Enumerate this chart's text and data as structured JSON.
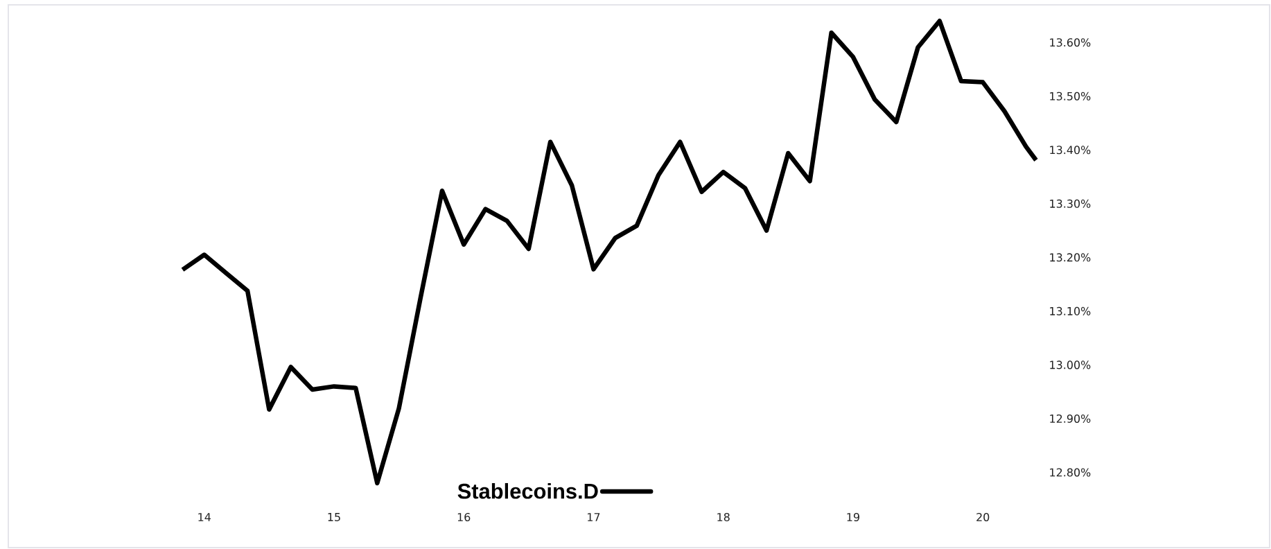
{
  "chart_data": {
    "type": "line",
    "x": [
      13.833,
      14.0,
      14.167,
      14.333,
      14.5,
      14.667,
      14.833,
      15.0,
      15.167,
      15.333,
      15.5,
      15.667,
      15.833,
      16.0,
      16.167,
      16.333,
      16.5,
      16.667,
      16.833,
      17.0,
      17.167,
      17.333,
      17.5,
      17.667,
      17.833,
      18.0,
      18.167,
      18.333,
      18.5,
      18.667,
      18.833,
      19.0,
      19.167,
      19.333,
      19.5,
      19.667,
      19.833,
      20.0,
      20.167,
      20.333,
      20.41
    ],
    "series": [
      {
        "name": "Stablecoins.D",
        "color": "#000000",
        "values": [
          13.177,
          13.205,
          13.171,
          13.138,
          12.917,
          12.996,
          12.954,
          12.96,
          12.957,
          12.78,
          12.919,
          13.125,
          13.324,
          13.224,
          13.29,
          13.268,
          13.216,
          13.415,
          13.334,
          13.178,
          13.236,
          13.259,
          13.353,
          13.415,
          13.322,
          13.359,
          13.329,
          13.25,
          13.394,
          13.342,
          13.618,
          13.573,
          13.494,
          13.452,
          13.591,
          13.64,
          13.528,
          13.526,
          13.472,
          13.406,
          13.381
        ]
      }
    ],
    "xticks": [
      14,
      15,
      16,
      17,
      18,
      19,
      20
    ],
    "yticks": [
      {
        "value": 12.8,
        "label": "12.80%"
      },
      {
        "value": 12.9,
        "label": "12.90%"
      },
      {
        "value": 13.0,
        "label": "13.00%"
      },
      {
        "value": 13.1,
        "label": "13.10%"
      },
      {
        "value": 13.2,
        "label": "13.20%"
      },
      {
        "value": 13.3,
        "label": "13.30%"
      },
      {
        "value": 13.4,
        "label": "13.40%"
      },
      {
        "value": 13.5,
        "label": "13.50%"
      },
      {
        "value": 13.6,
        "label": "13.60%"
      }
    ],
    "xlim": [
      12.49,
      22.21
    ],
    "ylim": [
      12.66,
      13.67
    ],
    "legend": "bottom",
    "grid": false,
    "line_style": "solid"
  }
}
